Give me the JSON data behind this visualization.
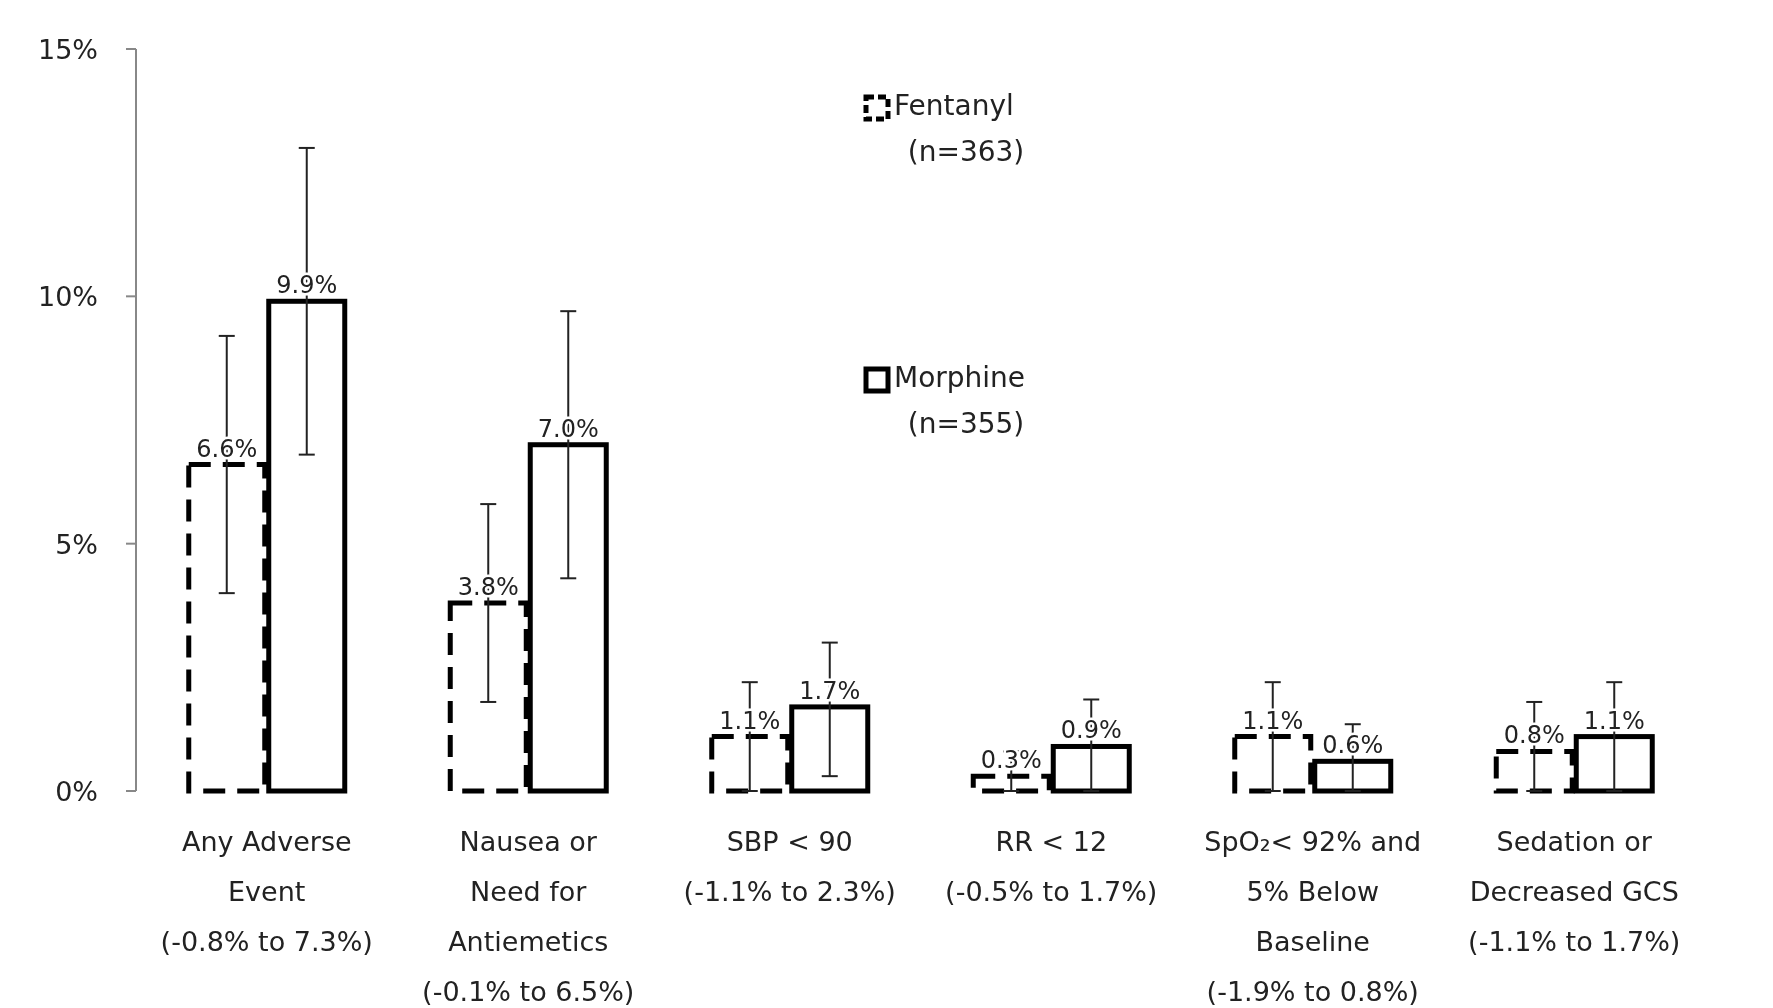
{
  "chart_data": {
    "type": "bar",
    "categories": [
      "Any Adverse\nEvent\n(-0.8% to 7.3%)",
      "Nausea or\nNeed for\nAntiemetics\n(-0.1% to 6.5%)",
      "SBP < 90\n(-1.1% to 2.3%)",
      "RR < 12\n(-0.5% to 1.7%)",
      "SpO₂< 92% and\n5% Below\nBaseline\n(-1.9% to 0.8%)",
      "Sedation or\nDecreased GCS\n(-1.1% to 1.7%)"
    ],
    "series": [
      {
        "name": "Fentanyl\n(n=363)",
        "color": "#000000",
        "line_style": "dashed",
        "values": [
          6.6,
          3.8,
          1.1,
          0.3,
          1.1,
          0.8
        ],
        "value_labels": [
          "6.6%",
          "3.8%",
          "1.1%",
          "0.3%",
          "1.1%",
          "0.8%"
        ],
        "errors": [
          [
            4.0,
            9.2
          ],
          [
            1.8,
            5.8
          ],
          [
            0,
            2.2
          ],
          [
            0,
            0.8
          ],
          [
            0,
            2.2
          ],
          [
            0,
            1.8
          ]
        ]
      },
      {
        "name": "Morphine\n(n=355)",
        "color": "#000000",
        "line_style": "solid",
        "values": [
          9.9,
          7.0,
          1.7,
          0.9,
          0.6,
          1.1
        ],
        "value_labels": [
          "9.9%",
          "7.0%",
          "1.7%",
          "0.9%",
          "0.6%",
          "1.1%"
        ],
        "errors": [
          [
            6.8,
            13.0
          ],
          [
            4.3,
            9.7
          ],
          [
            0.3,
            3.0
          ],
          [
            0,
            1.85
          ],
          [
            0,
            1.35
          ],
          [
            0,
            2.2
          ]
        ]
      }
    ],
    "ylim": [
      0,
      15
    ],
    "yticks": [
      {
        "value": 0,
        "label": "0%"
      },
      {
        "value": 5,
        "label": "5%"
      },
      {
        "value": 10,
        "label": "10%"
      },
      {
        "value": 15,
        "label": "15%"
      }
    ],
    "legend": "top"
  }
}
